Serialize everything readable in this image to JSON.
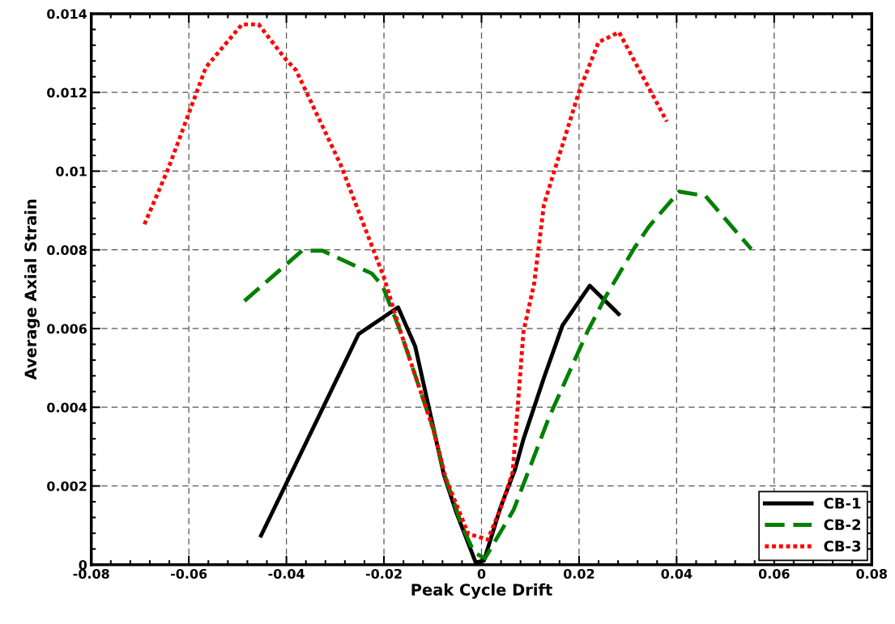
{
  "chart_data": {
    "type": "line",
    "xlabel": "Peak Cycle Drift",
    "ylabel": "Average Axial Strain",
    "xlim": [
      -0.08,
      0.08
    ],
    "xticks": [
      -0.08,
      -0.06,
      -0.04,
      -0.02,
      0,
      0.02,
      0.04,
      0.06,
      0.08
    ],
    "ylim": [
      0,
      0.014
    ],
    "yticks": [
      0,
      0.002,
      0.004,
      0.006,
      0.008,
      0.01,
      0.012,
      0.014
    ],
    "grid": true,
    "legend": "bottom right",
    "series": [
      {
        "name": "CB-1",
        "color": "#000000",
        "line_style": "solid",
        "x": [
          -0.0452,
          -0.0252,
          -0.0171,
          -0.0136,
          -0.0077,
          -0.0052,
          -0.0012,
          0.0005,
          0.0039,
          0.0069,
          0.0086,
          0.0128,
          0.0166,
          0.0222,
          0.0281
        ],
        "values": [
          0.00074,
          0.00586,
          0.00654,
          0.00555,
          0.00228,
          0.00134,
          6e-05,
          0.0001,
          0.00146,
          0.00243,
          0.00319,
          0.00475,
          0.00608,
          0.00709,
          0.00637
        ]
      },
      {
        "name": "CB-2",
        "color": "#008000",
        "line_style": "dashed",
        "x": [
          -0.0486,
          -0.0368,
          -0.0326,
          -0.0225,
          -0.0203,
          -0.0166,
          -0.0099,
          -0.0074,
          -0.004,
          -0.0015,
          0.0007,
          0.0066,
          0.0139,
          0.0217,
          0.0254,
          0.0313,
          0.0343,
          0.0405,
          0.0459,
          0.0553
        ],
        "values": [
          0.0067,
          0.00798,
          0.00798,
          0.0074,
          0.00709,
          0.00592,
          0.00345,
          0.00222,
          0.00099,
          0.00031,
          0.00016,
          0.0014,
          0.00376,
          0.00592,
          0.0068,
          0.00804,
          0.00859,
          0.00948,
          0.00937,
          0.00802
        ]
      },
      {
        "name": "CB-3",
        "color": "#ff0000",
        "line_style": "dotted",
        "x": [
          -0.0691,
          -0.0642,
          -0.0565,
          -0.0491,
          -0.0457,
          -0.0402,
          -0.038,
          -0.0289,
          -0.02,
          -0.0166,
          -0.0099,
          -0.0074,
          -0.0027,
          0.0013,
          0.004,
          0.0064,
          0.0086,
          0.0108,
          0.0128,
          0.015,
          0.02,
          0.024,
          0.0282,
          0.038
        ],
        "values": [
          0.00865,
          0.01007,
          0.01264,
          0.01373,
          0.01373,
          0.01285,
          0.01256,
          0.01017,
          0.0073,
          0.00592,
          0.00345,
          0.00222,
          0.00078,
          0.00064,
          0.00146,
          0.00236,
          0.00592,
          0.00715,
          0.00915,
          0.01003,
          0.01202,
          0.01328,
          0.01353,
          0.01126
        ]
      }
    ]
  }
}
